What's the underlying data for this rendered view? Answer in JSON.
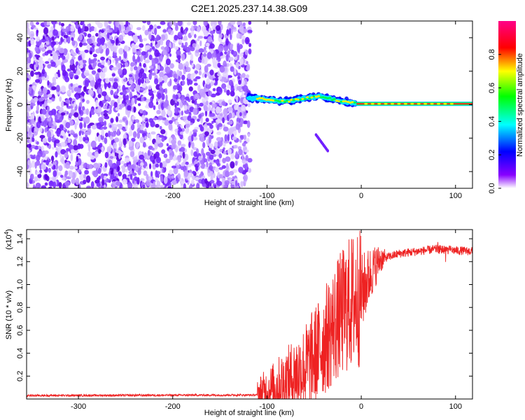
{
  "figure": {
    "title": "C2E1.2025.237.14.38.G09"
  },
  "chart_data": [
    {
      "type": "heatmap",
      "xlabel": "Height of straight line (km)",
      "ylabel": "Frequency (Hz)",
      "xlim": [
        -355,
        118
      ],
      "ylim": [
        -50,
        50
      ],
      "xticks": [
        -300,
        -200,
        -100,
        0,
        100
      ],
      "yticks": [
        -40,
        -20,
        0,
        20,
        40
      ],
      "grid": false,
      "features": {
        "noise_region_x": [
          -355,
          -118
        ],
        "signal_start_x": -120,
        "signal_frequency_trend": [
          [
            -120,
            4
          ],
          [
            -80,
            2
          ],
          [
            -45,
            5
          ],
          [
            -20,
            2
          ],
          [
            0,
            0.5
          ],
          [
            118,
            0.5
          ]
        ],
        "faint_trace": [
          [
            -48,
            -18
          ],
          [
            -35,
            -28
          ]
        ]
      },
      "colorbar": {
        "label": "Normalized spectral amplitude",
        "range": [
          0,
          1
        ],
        "ticks": [
          0.0,
          0.2,
          0.4,
          0.6,
          0.8
        ],
        "colormap": [
          "#ffffff",
          "#8800ff",
          "#0000ff",
          "#00ffff",
          "#00ff00",
          "#ffff00",
          "#ff0000",
          "#ff0088"
        ]
      }
    },
    {
      "type": "line",
      "xlabel": "Height of straight line (km)",
      "ylabel": "SNR (10 * v/v)",
      "yscale_label": "(x10",
      "yscale_exp": "4",
      "yscale_close": ")",
      "xlim": [
        -355,
        118
      ],
      "ylim": [
        0,
        14800
      ],
      "xticks": [
        -300,
        -200,
        -100,
        0,
        100
      ],
      "yticks": [
        2000,
        4000,
        6000,
        8000,
        10000,
        12000,
        14000
      ],
      "ytick_labels": [
        "0.2",
        "0.4",
        "0.6",
        "0.8",
        "1.0",
        "1.2",
        "1.4"
      ],
      "grid": false,
      "series_color": "#ee2222",
      "trend": [
        [
          -355,
          300
        ],
        [
          -110,
          350
        ],
        [
          -95,
          800
        ],
        [
          -80,
          1500
        ],
        [
          -60,
          2700
        ],
        [
          -45,
          4300
        ],
        [
          -35,
          5600
        ],
        [
          -25,
          7000
        ],
        [
          -15,
          8100
        ],
        [
          0,
          9200
        ],
        [
          10,
          11000
        ],
        [
          20,
          12200
        ],
        [
          40,
          12700
        ],
        [
          60,
          12900
        ],
        [
          80,
          13100
        ],
        [
          95,
          13000
        ],
        [
          118,
          12900
        ]
      ]
    }
  ]
}
